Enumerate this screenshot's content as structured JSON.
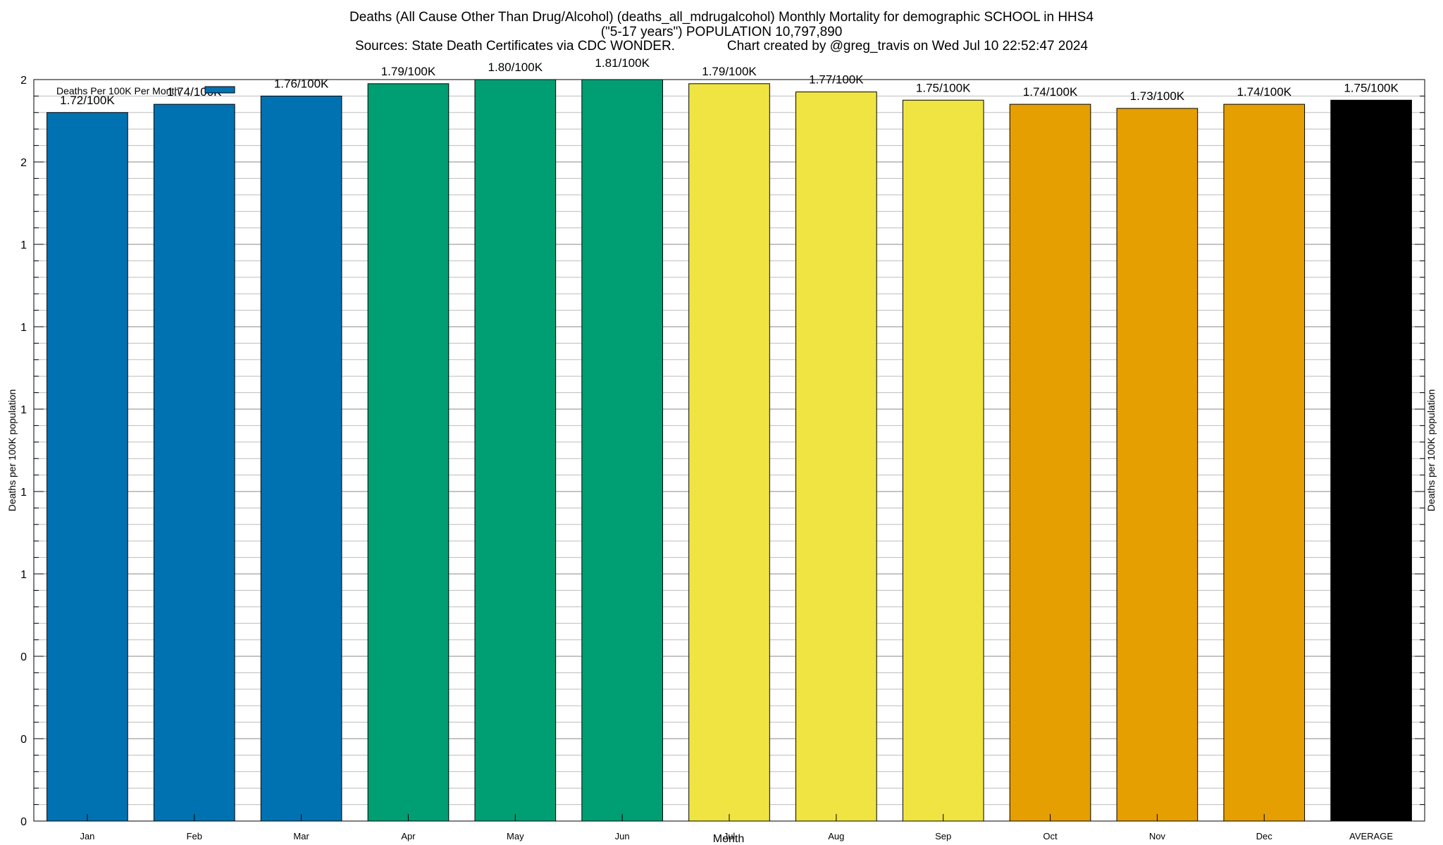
{
  "chart_data": {
    "type": "bar",
    "title_lines": [
      "Deaths (All Cause Other Than Drug/Alcohol) (deaths_all_mdrugalcohol) Monthly Mortality for demographic SCHOOL in HHS4",
      "(\"5-17 years\") POPULATION 10,797,890",
      "Sources: State Death Certificates via CDC WONDER.              Chart created by @greg_travis on Wed Jul 10 22:52:47 2024"
    ],
    "xlabel": "Month",
    "ylabel": "Deaths per 100K population",
    "ylabel_right": "Deaths per 100K population",
    "legend": {
      "label": "Deaths Per 100K Per Month",
      "color": "#0072b2",
      "placement": "top-left"
    },
    "categories": [
      "Jan",
      "Feb",
      "Mar",
      "Apr",
      "May",
      "Jun",
      "Jul",
      "Aug",
      "Sep",
      "Oct",
      "Nov",
      "Dec",
      "AVERAGE"
    ],
    "values": [
      1.72,
      1.74,
      1.76,
      1.79,
      1.8,
      1.81,
      1.79,
      1.77,
      1.75,
      1.74,
      1.73,
      1.74,
      1.75
    ],
    "value_labels": [
      "1.72/100K",
      "1.74/100K",
      "1.76/100K",
      "1.79/100K",
      "1.80/100K",
      "1.81/100K",
      "1.79/100K",
      "1.77/100K",
      "1.75/100K",
      "1.74/100K",
      "1.73/100K",
      "1.74/100K",
      "1.75/100K"
    ],
    "colors": [
      "#0072b2",
      "#0072b2",
      "#0072b2",
      "#009e73",
      "#009e73",
      "#009e73",
      "#f0e442",
      "#f0e442",
      "#f0e442",
      "#e69f00",
      "#e69f00",
      "#e69f00",
      "#000000"
    ],
    "ylim": [
      0,
      1.8
    ],
    "major_ticks": [
      0,
      0.2,
      0.4,
      0.6,
      0.8,
      1.0,
      1.2,
      1.4,
      1.6,
      1.8
    ],
    "major_tick_labels": [
      "0",
      "0",
      "0",
      "1",
      "1",
      "1",
      "1",
      "1",
      "2",
      "2"
    ],
    "minor_tick_step": 0.04,
    "grid": true
  }
}
